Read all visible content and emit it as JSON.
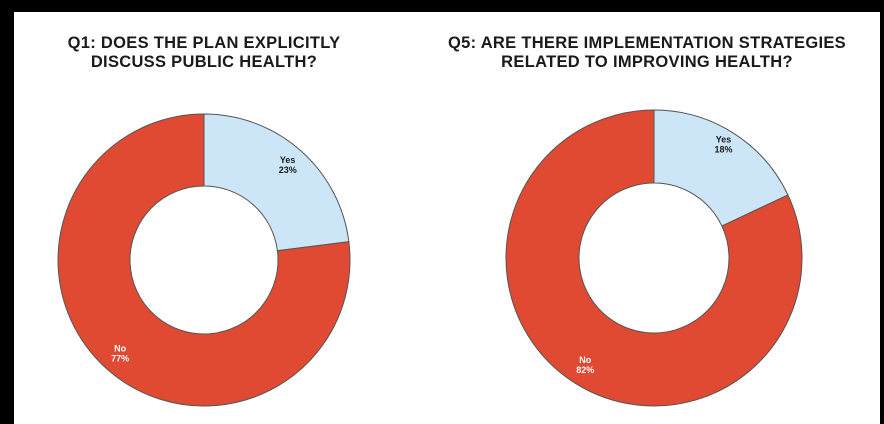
{
  "chart_data": [
    {
      "type": "pie",
      "title_lines": [
        "Q1: DOES THE PLAN EXPLICITLY",
        "DISCUSS PUBLIC HEALTH?"
      ],
      "slices": [
        {
          "label": "Yes",
          "value": 23,
          "value_label": "23%",
          "color": "#cde6f7",
          "text_color": "#1a1a1a"
        },
        {
          "label": "No",
          "value": 77,
          "value_label": "77%",
          "color": "#e04a32",
          "text_color": "#ffffff"
        }
      ],
      "donut": true
    },
    {
      "type": "pie",
      "title_lines": [
        "Q5: ARE THERE IMPLEMENTATION STRATEGIES",
        "RELATED TO IMPROVING HEALTH?"
      ],
      "slices": [
        {
          "label": "Yes",
          "value": 18,
          "value_label": "18%",
          "color": "#cde6f7",
          "text_color": "#1a1a1a"
        },
        {
          "label": "No",
          "value": 82,
          "value_label": "82%",
          "color": "#e04a32",
          "text_color": "#ffffff"
        }
      ],
      "donut": true
    }
  ],
  "colors": {
    "frame_border": "#000000",
    "slice_stroke": "#555555"
  }
}
